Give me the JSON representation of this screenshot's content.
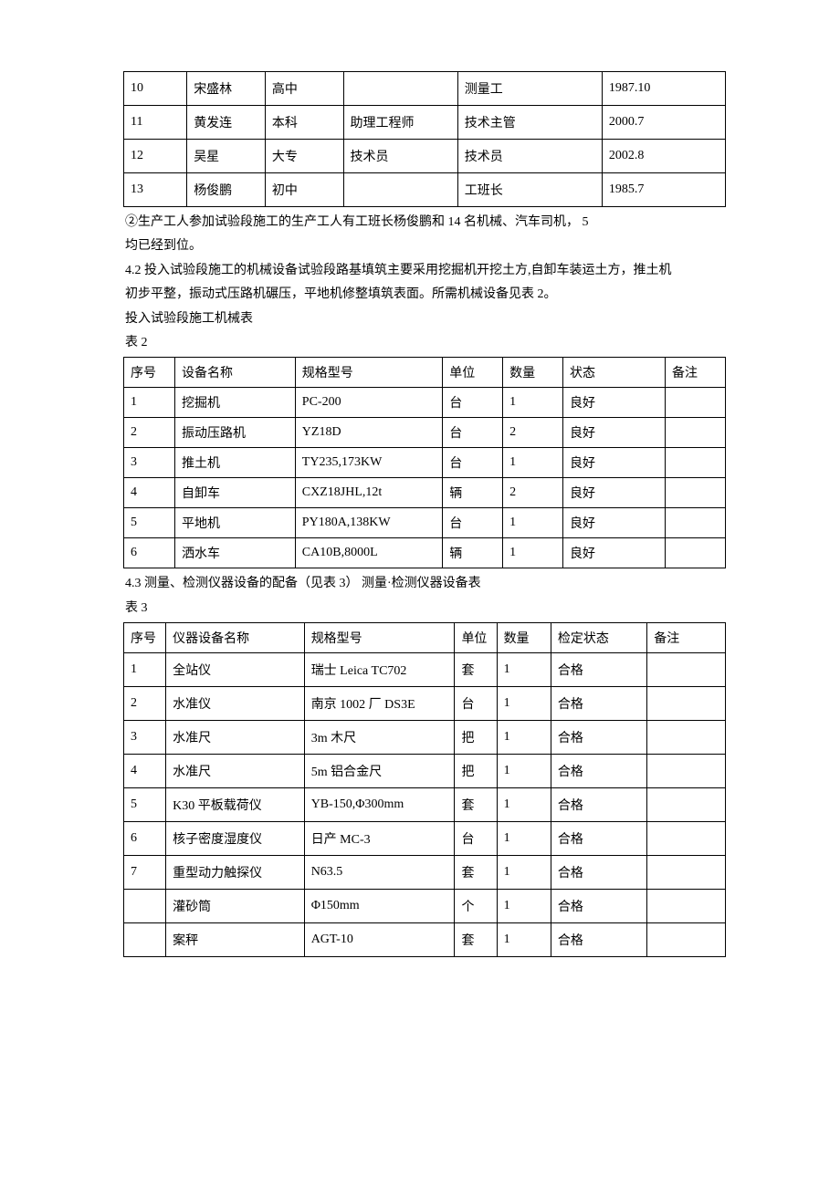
{
  "table1": {
    "col_widths": [
      "10.5%",
      "13%",
      "13%",
      "19%",
      "24%",
      "20.5%"
    ],
    "rows": [
      [
        "10",
        "宋盛林",
        "高中",
        "",
        "测量工",
        "1987.10"
      ],
      [
        "11",
        "黄发连",
        "本科",
        "助理工程师",
        "技术主管",
        "2000.7"
      ],
      [
        "12",
        "吴星",
        "大专",
        "技术员",
        "技术员",
        "2002.8"
      ],
      [
        "13",
        "杨俊鹏",
        "初中",
        "",
        "工班长",
        "1985.7"
      ]
    ]
  },
  "paragraphs1": [
    "②生产工人参加试验段施工的生产工人有工班长杨俊鹏和 14 名机械、汽车司机，  5",
    "均已经到位。",
    "4.2 投入试验段施工的机械设备试验段路基填筑主要采用挖掘机开挖土方,自卸车装运土方，推土机",
    "初步平整，振动式压路机碾压，平地机修整填筑表面。所需机械设备见表 2。",
    "投入试验段施工机械表",
    "表 2"
  ],
  "table2": {
    "col_widths": [
      "8.5%",
      "20%",
      "24.5%",
      "10%",
      "10%",
      "17%",
      "10%"
    ],
    "headers": [
      "序号",
      "设备名称",
      "规格型号",
      "单位",
      "数量",
      "状态",
      "备注"
    ],
    "rows": [
      [
        "1",
        "挖掘机",
        "PC-200",
        "台",
        "1",
        "良好",
        ""
      ],
      [
        "2",
        "振动压路机",
        "YZ18D",
        "台",
        "2",
        "良好",
        ""
      ],
      [
        "3",
        "推土机",
        "TY235,173KW",
        "台",
        "1",
        "良好",
        ""
      ],
      [
        "4",
        "自卸车",
        "CXZ18JHL,12t",
        "辆",
        "2",
        "良好",
        ""
      ],
      [
        "5",
        "平地机",
        "PY180A,138KW",
        "台",
        "1",
        "良好",
        ""
      ],
      [
        "6",
        "洒水车",
        "CA10B,8000L",
        "辆",
        "1",
        "良好",
        ""
      ]
    ]
  },
  "paragraphs2": [
    "4.3 测量、检测仪器设备的配备（见表 3） 测量·检测仪器设备表",
    "表 3"
  ],
  "table3": {
    "col_widths": [
      "7%",
      "23%",
      "25%",
      "7%",
      "9%",
      "16%",
      "13%"
    ],
    "headers": [
      "序号",
      "仪器设备名称",
      "规格型号",
      "单位",
      "数量",
      "检定状态",
      "备注"
    ],
    "rows": [
      [
        "1",
        "全站仪",
        "瑞士 Leica TC702",
        "套",
        "1",
        "合格",
        ""
      ],
      [
        "2",
        "水准仪",
        "南京 1002 厂 DS3E",
        "台",
        "1",
        "合格",
        ""
      ],
      [
        "3",
        "水准尺",
        "3m 木尺",
        "把",
        "1",
        "合格",
        ""
      ],
      [
        "4",
        "水准尺",
        "5m 铝合金尺",
        "把",
        "1",
        "合格",
        ""
      ],
      [
        "5",
        "K30 平板载荷仪",
        "YB-150,Φ300mm",
        "套",
        "1",
        "合格",
        ""
      ],
      [
        "6",
        "核子密度湿度仪",
        "日产 MC-3",
        "台",
        "1",
        "合格",
        ""
      ],
      [
        "7",
        "重型动力触探仪",
        "N63.5",
        "套",
        "1",
        "合格",
        ""
      ],
      [
        "",
        "灌砂筒",
        "Φ150mm",
        "个",
        "1",
        "合格",
        ""
      ],
      [
        "",
        "案秤",
        "AGT-10",
        "套",
        "1",
        "合格",
        ""
      ]
    ]
  }
}
